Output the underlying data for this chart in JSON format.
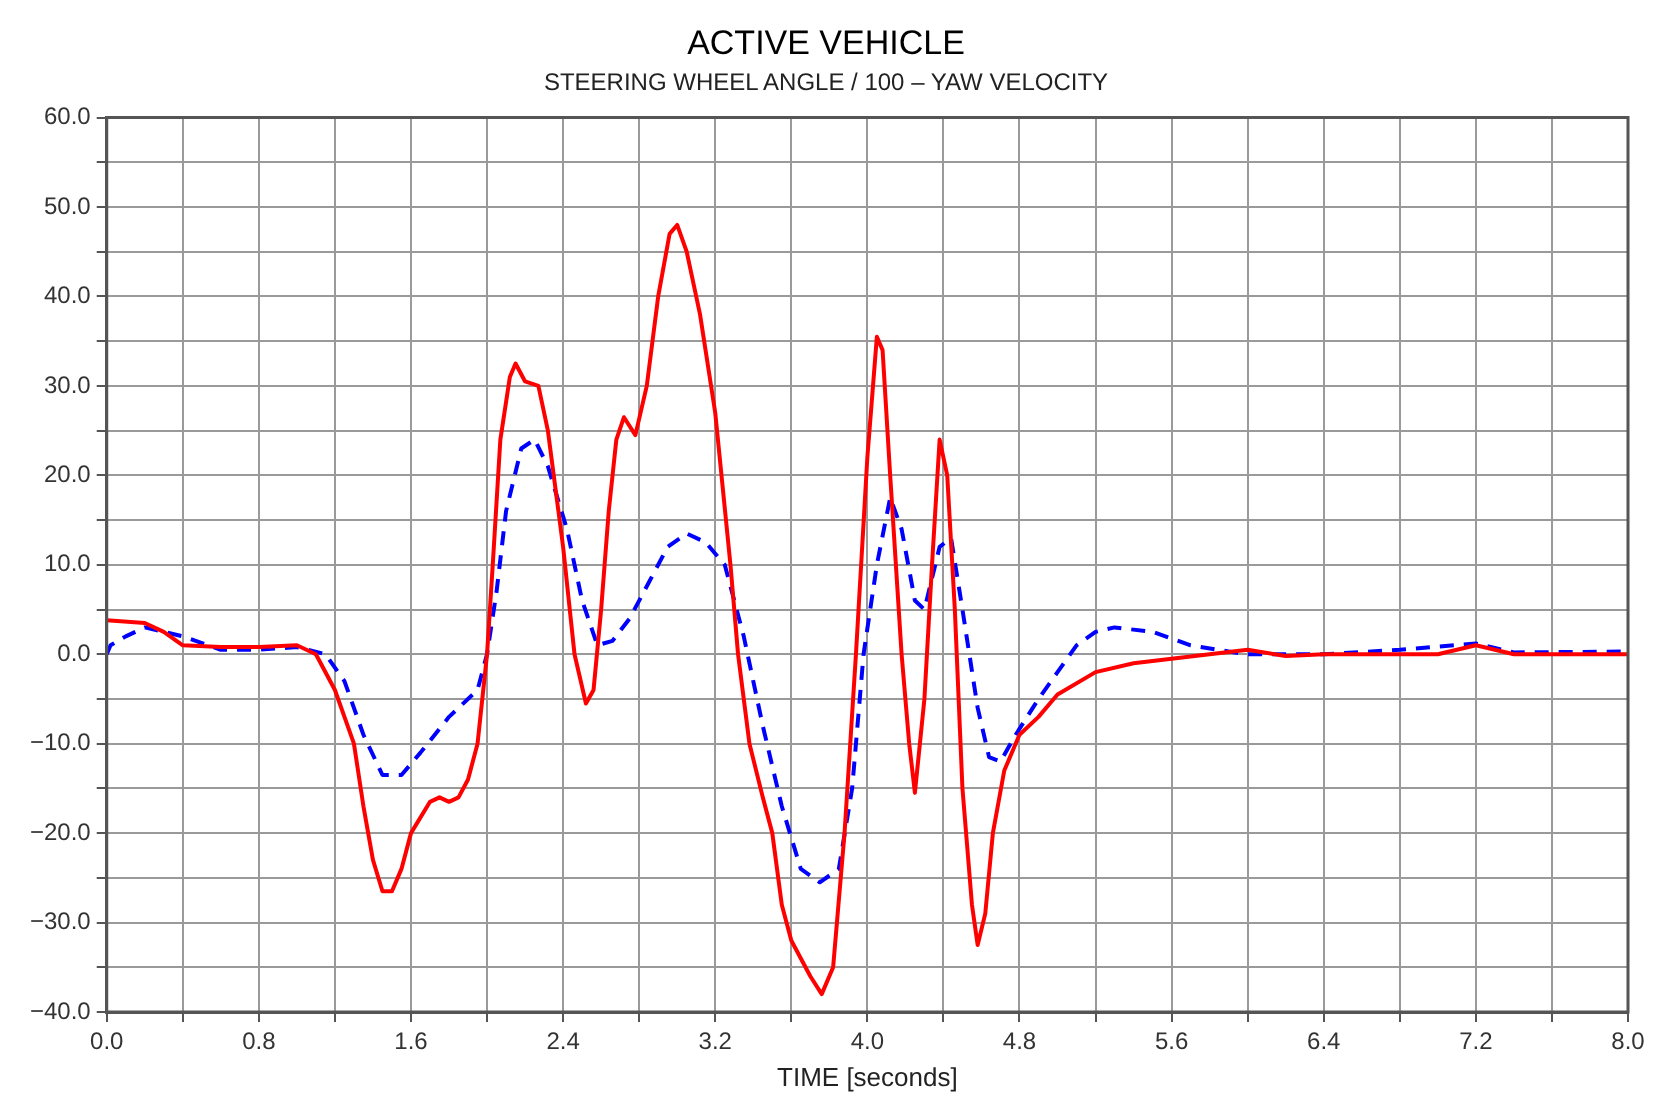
{
  "chart_data": {
    "type": "line",
    "title": "ACTIVE VEHICLE",
    "subtitle": "STEERING WHEEL ANGLE / 100 – YAW VELOCITY",
    "xlabel": "TIME [seconds]",
    "xlim": [
      0,
      8
    ],
    "xticks": [
      {
        "value": 0,
        "label": "0.0"
      },
      {
        "value": 0.4,
        "label": null
      },
      {
        "value": 0.8,
        "label": "0.8"
      },
      {
        "value": 1.2,
        "label": null
      },
      {
        "value": 1.6,
        "label": "1.6"
      },
      {
        "value": 2,
        "label": null
      },
      {
        "value": 2.4,
        "label": "2.4"
      },
      {
        "value": 2.8,
        "label": null
      },
      {
        "value": 3.2,
        "label": "3.2"
      },
      {
        "value": 3.6,
        "label": null
      },
      {
        "value": 4,
        "label": "4.0"
      },
      {
        "value": 4.4,
        "label": null
      },
      {
        "value": 4.8,
        "label": "4.8"
      },
      {
        "value": 5.2,
        "label": null
      },
      {
        "value": 5.6,
        "label": "5.6"
      },
      {
        "value": 6,
        "label": null
      },
      {
        "value": 6.4,
        "label": "6.4"
      },
      {
        "value": 6.8,
        "label": null
      },
      {
        "value": 7.2,
        "label": "7.2"
      },
      {
        "value": 7.6,
        "label": null
      },
      {
        "value": 8,
        "label": "8.0"
      }
    ],
    "ylim": [
      -40,
      60
    ],
    "yticks": [
      {
        "value": -40,
        "label": "−40.0"
      },
      {
        "value": -35,
        "label": null
      },
      {
        "value": -30,
        "label": "−30.0"
      },
      {
        "value": -25,
        "label": null
      },
      {
        "value": -20,
        "label": "−20.0"
      },
      {
        "value": -15,
        "label": null
      },
      {
        "value": -10,
        "label": "−10.0"
      },
      {
        "value": -5,
        "label": null
      },
      {
        "value": 0,
        "label": "0.0"
      },
      {
        "value": 5,
        "label": null
      },
      {
        "value": 10,
        "label": "10.0"
      },
      {
        "value": 15,
        "label": null
      },
      {
        "value": 20,
        "label": "20.0"
      },
      {
        "value": 25,
        "label": null
      },
      {
        "value": 30,
        "label": "30.0"
      },
      {
        "value": 35,
        "label": null
      },
      {
        "value": 40,
        "label": "40.0"
      },
      {
        "value": 45,
        "label": null
      },
      {
        "value": 50,
        "label": "50.0"
      },
      {
        "value": 55,
        "label": null
      },
      {
        "value": 60,
        "label": "60.0"
      }
    ],
    "grid": true,
    "legend": false,
    "marker": "none",
    "series": [
      {
        "color": "#ff0000",
        "line_style": "solid",
        "x": [
          0,
          0.2,
          0.3,
          0.4,
          0.6,
          0.8,
          1.0,
          1.1,
          1.2,
          1.3,
          1.35,
          1.4,
          1.45,
          1.5,
          1.55,
          1.6,
          1.7,
          1.75,
          1.8,
          1.85,
          1.9,
          1.95,
          2.0,
          2.03,
          2.07,
          2.12,
          2.15,
          2.2,
          2.27,
          2.32,
          2.4,
          2.46,
          2.52,
          2.56,
          2.6,
          2.64,
          2.68,
          2.72,
          2.78,
          2.84,
          2.9,
          2.96,
          3.0,
          3.05,
          3.12,
          3.2,
          3.28,
          3.32,
          3.38,
          3.45,
          3.5,
          3.55,
          3.6,
          3.7,
          3.76,
          3.82,
          3.88,
          3.94,
          4.0,
          4.05,
          4.08,
          4.12,
          4.18,
          4.22,
          4.25,
          4.3,
          4.34,
          4.38,
          4.42,
          4.46,
          4.5,
          4.55,
          4.58,
          4.62,
          4.66,
          4.72,
          4.8,
          4.9,
          5.0,
          5.2,
          5.4,
          5.6,
          5.8,
          6.0,
          6.2,
          6.4,
          7.0,
          7.2,
          7.4,
          8.0
        ],
        "values": [
          3.8,
          3.5,
          2.5,
          1.0,
          0.8,
          0.8,
          1.0,
          0,
          -4,
          -10,
          -17,
          -23,
          -26.5,
          -26.5,
          -24,
          -20,
          -16.5,
          -16,
          -16.5,
          -16,
          -14,
          -10,
          0,
          10,
          24,
          31,
          32.5,
          30.5,
          30,
          25,
          12,
          0,
          -5.5,
          -4,
          5,
          16,
          24,
          26.5,
          24.5,
          30,
          40,
          47,
          48,
          45,
          38,
          27,
          10,
          0,
          -10,
          -16,
          -20,
          -28,
          -32,
          -36,
          -38,
          -35,
          -20,
          0,
          22,
          35.5,
          34,
          20,
          0,
          -10,
          -15.5,
          -5,
          10,
          24,
          20,
          5,
          -15,
          -28,
          -32.5,
          -29,
          -20,
          -13,
          -9,
          -7,
          -4.5,
          -2,
          -1,
          -0.5,
          0,
          0.5,
          -0.2,
          0,
          0,
          1,
          0,
          0
        ]
      },
      {
        "color": "#0000ff",
        "line_style": "dashed",
        "x": [
          0,
          0.02,
          0.1,
          0.2,
          0.3,
          0.4,
          0.6,
          0.8,
          1.0,
          1.15,
          1.25,
          1.35,
          1.45,
          1.55,
          1.65,
          1.8,
          1.95,
          2.0,
          2.05,
          2.1,
          2.18,
          2.25,
          2.32,
          2.42,
          2.5,
          2.58,
          2.66,
          2.75,
          2.85,
          2.95,
          3.05,
          3.15,
          3.25,
          3.35,
          3.45,
          3.55,
          3.65,
          3.75,
          3.85,
          3.92,
          3.98,
          4.05,
          4.12,
          4.18,
          4.25,
          4.3,
          4.38,
          4.44,
          4.5,
          4.58,
          4.64,
          4.7,
          4.78,
          4.9,
          5.0,
          5.1,
          5.2,
          5.3,
          5.5,
          5.7,
          5.9,
          6.0,
          6.4,
          6.8,
          7.2,
          7.4,
          8.0
        ],
        "values": [
          0,
          1,
          2,
          3,
          2.5,
          2,
          0.5,
          0.5,
          0.8,
          0,
          -3,
          -9,
          -13.5,
          -13.5,
          -11,
          -7,
          -4,
          0,
          7,
          16,
          23,
          24,
          21,
          14,
          6,
          1,
          1.5,
          4,
          8,
          12,
          13.5,
          12.5,
          10,
          2,
          -8,
          -17,
          -24,
          -25.5,
          -24,
          -15,
          0,
          10,
          17.5,
          14,
          6,
          5,
          12,
          13,
          5,
          -6,
          -11.5,
          -12,
          -9,
          -5,
          -2,
          1,
          2.5,
          3,
          2.5,
          1,
          0.3,
          0,
          0,
          0.5,
          1.2,
          0.2,
          0.3
        ]
      }
    ]
  }
}
